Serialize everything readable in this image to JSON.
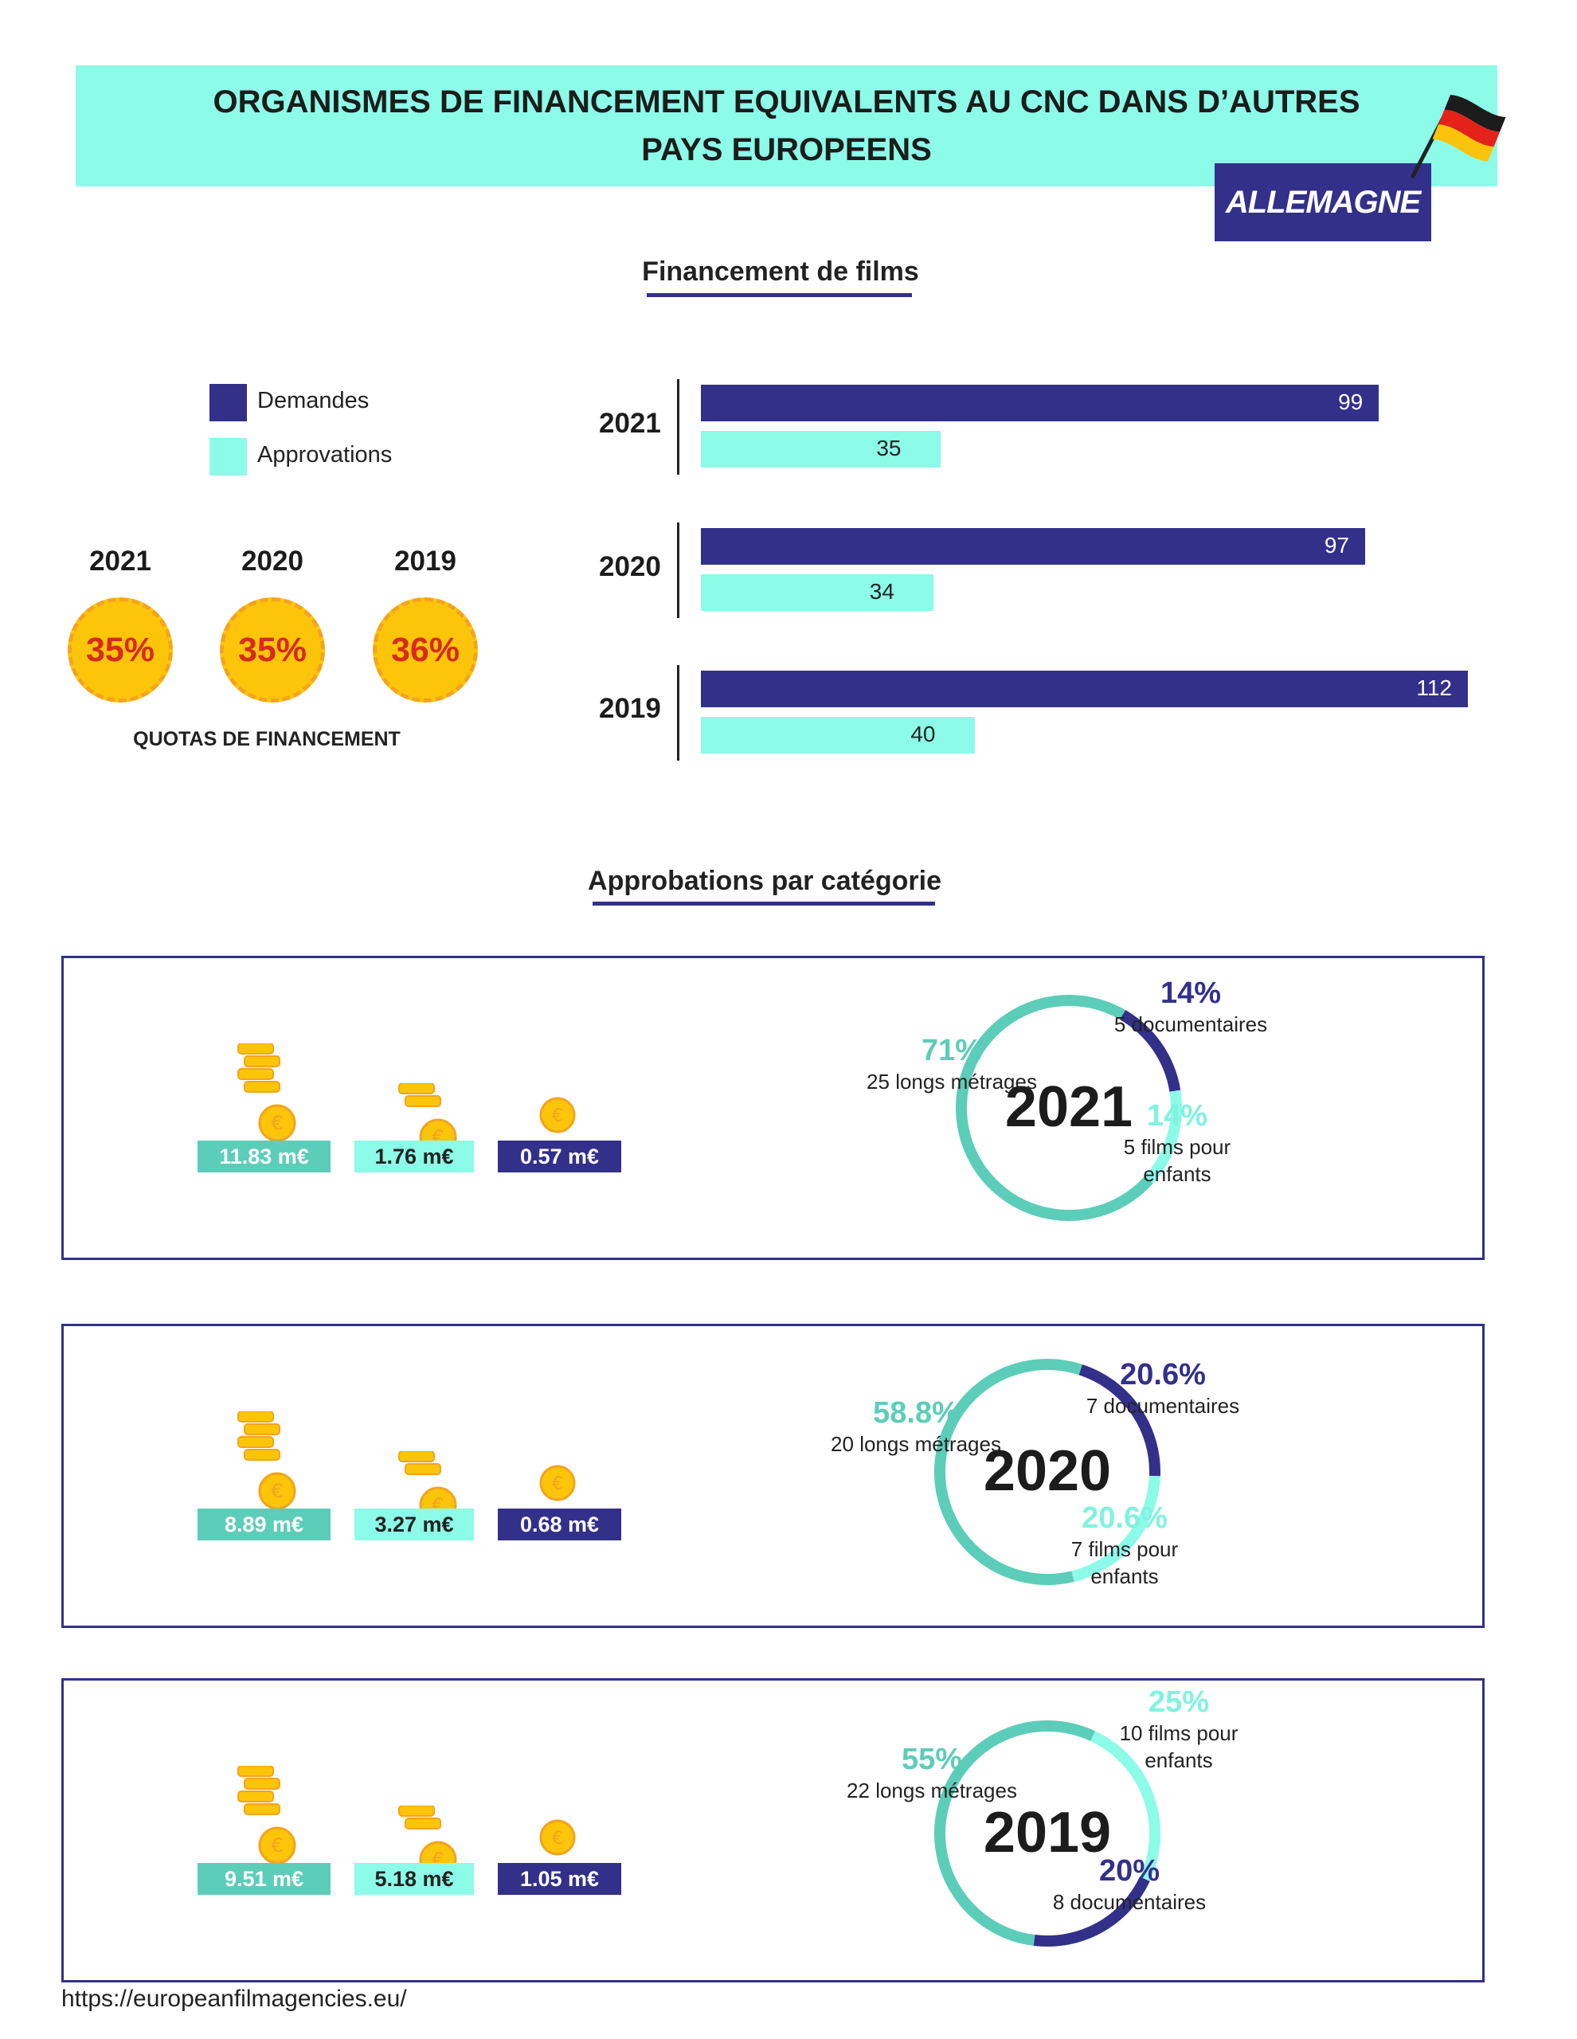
{
  "header": {
    "title": "ORGANISMES DE FINANCEMENT EQUIVALENTS AU CNC DANS D’AUTRES\nPAYS EUROPEENS",
    "country": "ALLEMAGNE"
  },
  "colors": {
    "demandes": "#33308a",
    "approvations": "#8cfbe8",
    "long_metrages": "#5ccdb8",
    "documentaires": "#33308a",
    "enfants": "#8cfbe8",
    "banner": "#8cfbe8",
    "coin": "#fdc50a"
  },
  "sections": {
    "financement_title": "Financement de films",
    "approbations_title": "Approbations par catégorie"
  },
  "legend": [
    {
      "label": "Demandes",
      "color": "#33308a"
    },
    {
      "label": "Approvations",
      "color": "#8cfbe8"
    }
  ],
  "quotas": {
    "label": "QUOTAS DE FINANCEMENT",
    "items": [
      {
        "year": "2021",
        "value": "35%"
      },
      {
        "year": "2020",
        "value": "35%"
      },
      {
        "year": "2019",
        "value": "36%"
      }
    ]
  },
  "chart_data": {
    "type": "bar",
    "orientation": "horizontal",
    "title": "Financement de films",
    "categories": [
      "2021",
      "2020",
      "2019"
    ],
    "series": [
      {
        "name": "Demandes",
        "values": [
          99,
          97,
          112
        ]
      },
      {
        "name": "Approvations",
        "values": [
          35,
          34,
          40
        ]
      }
    ],
    "xlim": [
      0,
      112
    ],
    "grid": false,
    "legend_position": "left"
  },
  "categories": [
    {
      "year": "2021",
      "money": [
        "11.83 m€",
        "1.76 m€",
        "0.57 m€"
      ],
      "long": {
        "pct": "71%",
        "label": "25 longs métrages",
        "value": 71
      },
      "doc": {
        "pct": "14%",
        "label": "5 documentaires",
        "value": 14
      },
      "enf": {
        "pct": "14%",
        "label": "5 films pour enfants",
        "value": 14
      }
    },
    {
      "year": "2020",
      "money": [
        "8.89 m€",
        "3.27 m€",
        "0.68 m€"
      ],
      "long": {
        "pct": "58.8%",
        "label": "20 longs métrages",
        "value": 58.8
      },
      "doc": {
        "pct": "20.6%",
        "label": "7 documentaires",
        "value": 20.6
      },
      "enf": {
        "pct": "20.6%",
        "label": "7 films pour enfants",
        "value": 20.6
      }
    },
    {
      "year": "2019",
      "money": [
        "9.51 m€",
        "5.18 m€",
        "1.05 m€"
      ],
      "long": {
        "pct": "55%",
        "label": "22 longs métrages",
        "value": 55
      },
      "doc": {
        "pct": "20%",
        "label": "8 documentaires",
        "value": 20
      },
      "enf": {
        "pct": "25%",
        "label": "10 films pour\nenfants",
        "value": 25
      }
    }
  ],
  "footer": {
    "url": "https://europeanfilmagencies.eu/"
  }
}
